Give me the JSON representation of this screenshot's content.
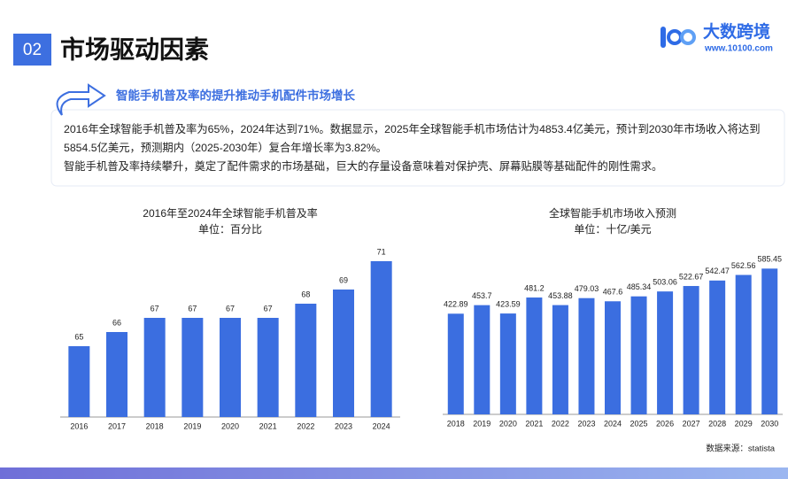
{
  "header": {
    "number": "02",
    "title": "市场驱动因素",
    "logo": "大数跨境",
    "website": "www.10100.com"
  },
  "subtitle": "智能手机普及率的提升推动手机配件市场增长",
  "paragraphs": [
    "2016年全球智能手机普及率为65%，2024年达到71%。数据显示，2025年全球智能手机市场估计为4853.4亿美元，预计到2030年市场收入将达到5854.5亿美元，预测期内（2025-2030年）复合年增长率为3.82%。",
    "智能手机普及率持续攀升，奠定了配件需求的市场基础，巨大的存量设备意味着对保护壳、屏幕贴膜等基础配件的刚性需求。"
  ],
  "chart_data": [
    {
      "type": "bar",
      "title": "2016年至2024年全球智能手机普及率",
      "subtitle": "单位：百分比",
      "categories": [
        "2016",
        "2017",
        "2018",
        "2019",
        "2020",
        "2021",
        "2022",
        "2023",
        "2024"
      ],
      "values": [
        65,
        66,
        67,
        67,
        67,
        67,
        68,
        69,
        71
      ],
      "color": "#3b6ee0",
      "ylim": [
        60,
        72
      ]
    },
    {
      "type": "bar",
      "title": "全球智能手机市场收入预测",
      "subtitle": "单位：十亿/美元",
      "categories": [
        "2018",
        "2019",
        "2020",
        "2021",
        "2022",
        "2023",
        "2024",
        "2025",
        "2026",
        "2027",
        "2028",
        "2029",
        "2030"
      ],
      "values": [
        422.89,
        453.7,
        423.59,
        481.2,
        453.88,
        479.03,
        467.6,
        485.34,
        503.06,
        522.67,
        542.47,
        562.56,
        585.45
      ],
      "color": "#3b6ee0",
      "ylim": [
        60,
        660
      ]
    }
  ],
  "source": "数据来源：statista"
}
